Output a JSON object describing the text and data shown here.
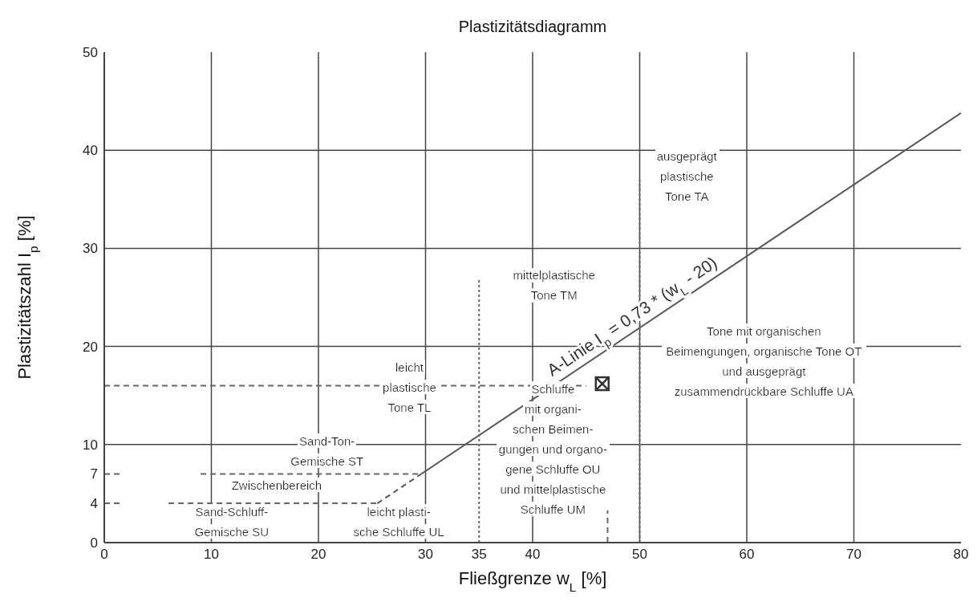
{
  "chart_data": {
    "type": "line",
    "title": "Plastizitätsdiagramm",
    "xlabel": "Fließgrenze w$_{L}$ [%]",
    "ylabel": "Plastizitätszahl I$_{p}$ [%]",
    "xlim": [
      0,
      80
    ],
    "ylim": [
      0,
      50
    ],
    "xticks": [
      0,
      10,
      20,
      30,
      35,
      40,
      50,
      60,
      70,
      80
    ],
    "yticks": [
      0,
      4,
      7,
      10,
      20,
      30,
      40,
      50
    ],
    "grid": true,
    "series": [
      {
        "x": [
          29.6,
          80
        ],
        "values": [
          7,
          43.8
        ],
        "color": "#555555",
        "line_style": "solid",
        "marker": "none"
      },
      {
        "x": [
          25.5,
          29.6
        ],
        "values": [
          4,
          7
        ],
        "color": "#555555",
        "line_style": "dashed",
        "marker": "none"
      },
      {
        "x": [
          6,
          25.5
        ],
        "values": [
          4,
          4
        ],
        "color": "#666666",
        "line_style": "dashed",
        "marker": "none"
      },
      {
        "x": [
          0,
          1.5
        ],
        "values": [
          4,
          4
        ],
        "color": "#666666",
        "line_style": "dashed",
        "marker": "none"
      },
      {
        "x": [
          9,
          29.6
        ],
        "values": [
          7,
          7
        ],
        "color": "#666666",
        "line_style": "dashed",
        "marker": "none"
      },
      {
        "x": [
          0,
          1.5
        ],
        "values": [
          7,
          7
        ],
        "color": "#666666",
        "line_style": "dashed",
        "marker": "none"
      },
      {
        "x": [
          0,
          45
        ],
        "values": [
          16,
          16
        ],
        "color": "#666666",
        "line_style": "dashed",
        "marker": "none"
      },
      {
        "x": [
          35,
          35
        ],
        "values": [
          0,
          27
        ],
        "color": "#666666",
        "line_style": "dotted",
        "marker": "none"
      },
      {
        "x": [
          50,
          50
        ],
        "values": [
          0,
          37
        ],
        "color": "#666666",
        "line_style": "dotted",
        "marker": "none"
      },
      {
        "x": [
          47,
          47
        ],
        "values": [
          0,
          3.3
        ],
        "color": "#666666",
        "line_style": "dashed",
        "marker": "none"
      },
      {
        "type": "scatter",
        "x": [
          46.5
        ],
        "values": [
          16.2
        ],
        "color": "#333333",
        "marker": "square"
      }
    ],
    "annotations": [
      {
        "text": "A-Linie I$_{p}$ = 0,73 * (w$_{L}$ - 20)",
        "x": 50,
        "y": 21.9
      },
      "leicht\nplastische\nTone TL",
      "mittelplastische\nTone TM",
      "ausgeprägt\nplastische\nTone TA",
      "Tone mit organischen\nBeimengungen, organische Tone OT\nund ausgeprägt\nzusammendrückbare Schluffe UA",
      "Schluffe\nmit organi-\nschen Beimen-\ngungen und organo-\ngene Schluffe OU\nund mittelplastische\nSchluffe UM",
      "Sand-Ton-\nGemische ST",
      "Zwischenbereich",
      "Sand-Schluff-\nGemische SU",
      "leicht plasti-\nsche Schluffe UL"
    ]
  }
}
